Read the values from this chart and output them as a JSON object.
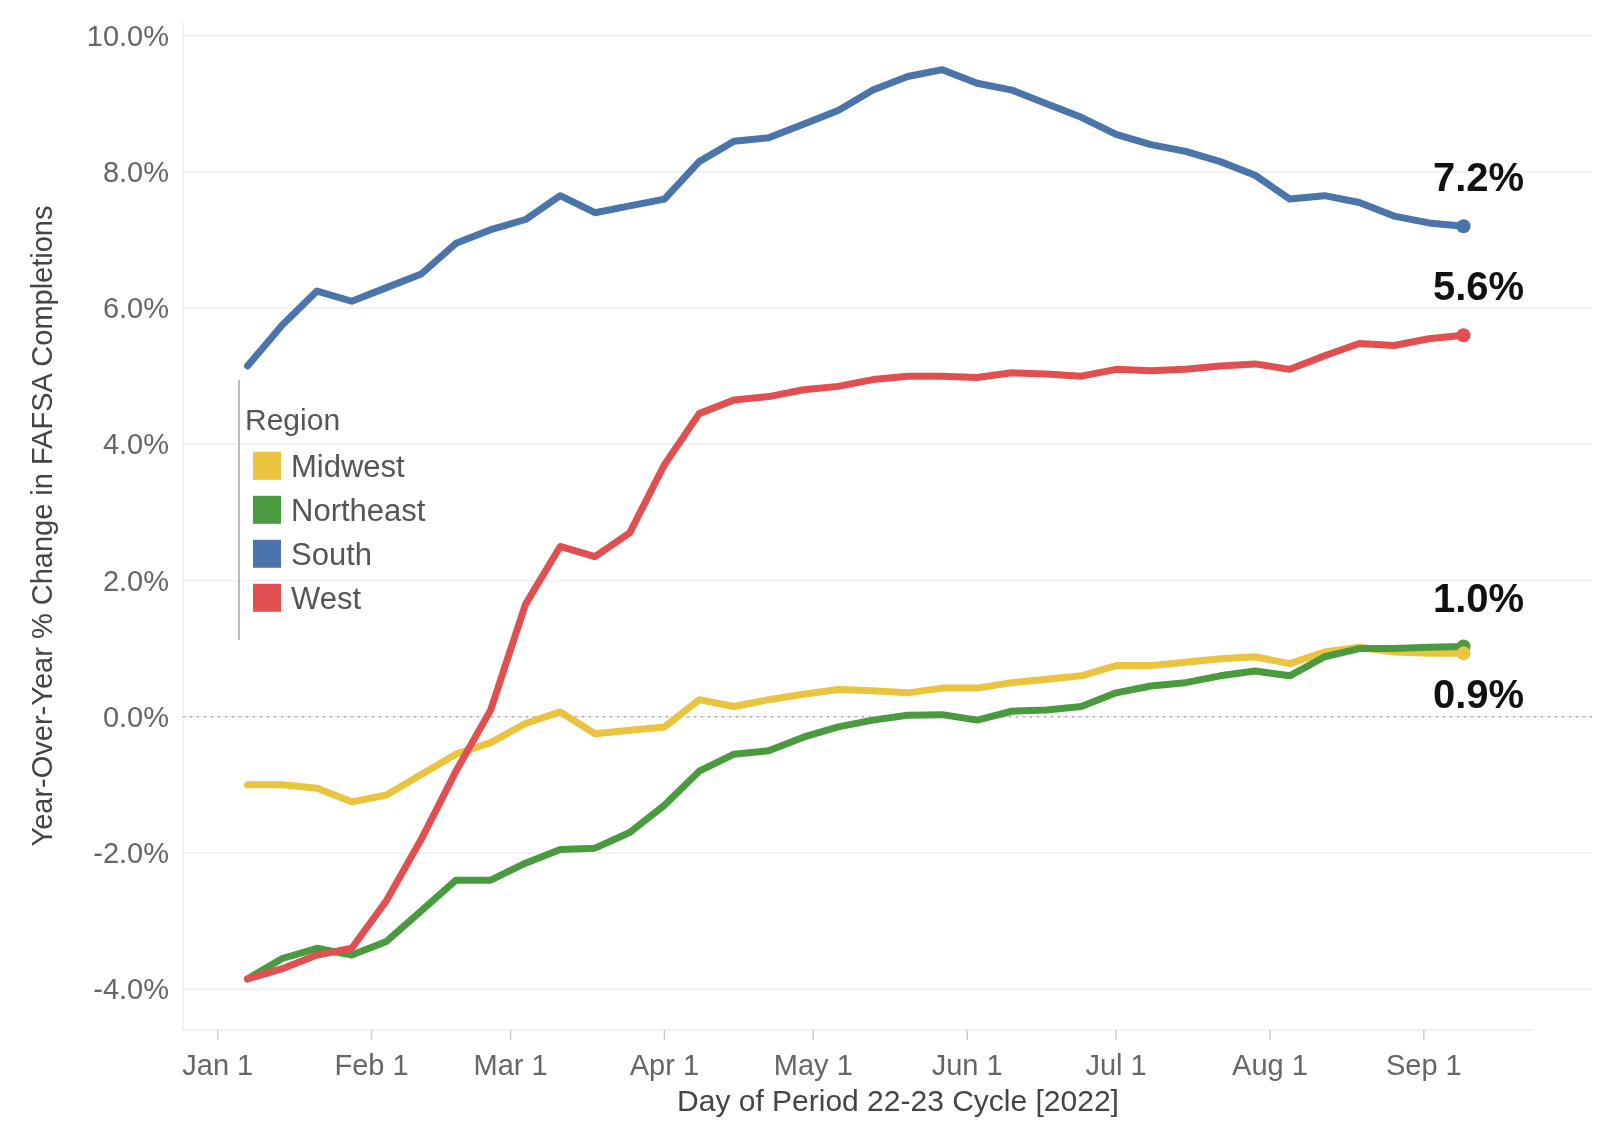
{
  "chart_data": {
    "type": "line",
    "xlabel": "Day of Period 22-23 Cycle [2022]",
    "ylabel": "Year-Over-Year % Change in FAFSA Completions",
    "legend_title": "Region",
    "legend": "left",
    "grid": "y",
    "line_style": "solid",
    "x": [
      "2022-01-07",
      "2022-01-14",
      "2022-01-21",
      "2022-01-28",
      "2022-02-04",
      "2022-02-11",
      "2022-02-18",
      "2022-02-25",
      "2022-03-04",
      "2022-03-11",
      "2022-03-18",
      "2022-03-25",
      "2022-04-01",
      "2022-04-08",
      "2022-04-15",
      "2022-04-22",
      "2022-04-29",
      "2022-05-06",
      "2022-05-13",
      "2022-05-20",
      "2022-05-27",
      "2022-06-03",
      "2022-06-10",
      "2022-06-17",
      "2022-06-24",
      "2022-07-01",
      "2022-07-08",
      "2022-07-15",
      "2022-07-22",
      "2022-07-29",
      "2022-08-05",
      "2022-08-12",
      "2022-08-19",
      "2022-08-26",
      "2022-09-02",
      "2022-09-09"
    ],
    "series": [
      {
        "name": "Midwest",
        "color": "#eac43f",
        "values": [
          -1.0,
          -1.0,
          -1.05,
          -1.25,
          -1.15,
          -0.85,
          -0.55,
          -0.38,
          -0.1,
          0.07,
          -0.25,
          -0.2,
          -0.15,
          0.25,
          0.15,
          0.25,
          0.33,
          0.4,
          0.38,
          0.35,
          0.42,
          0.42,
          0.5,
          0.55,
          0.6,
          0.75,
          0.75,
          0.8,
          0.85,
          0.88,
          0.78,
          0.95,
          1.02,
          0.95,
          0.93,
          0.93
        ]
      },
      {
        "name": "Northeast",
        "color": "#4a9b3f",
        "values": [
          -3.85,
          -3.55,
          -3.4,
          -3.5,
          -3.3,
          -2.85,
          -2.4,
          -2.4,
          -2.15,
          -1.95,
          -1.93,
          -1.7,
          -1.3,
          -0.8,
          -0.55,
          -0.5,
          -0.3,
          -0.15,
          -0.05,
          0.02,
          0.03,
          -0.05,
          0.08,
          0.1,
          0.15,
          0.35,
          0.45,
          0.5,
          0.6,
          0.67,
          0.6,
          0.88,
          1.0,
          1.0,
          1.02,
          1.03
        ]
      },
      {
        "name": "South",
        "color": "#4a74aa",
        "values": [
          5.15,
          5.75,
          6.25,
          6.1,
          6.3,
          6.5,
          6.95,
          7.15,
          7.3,
          7.65,
          7.4,
          7.5,
          7.6,
          8.15,
          8.45,
          8.5,
          8.7,
          8.9,
          9.2,
          9.4,
          9.5,
          9.3,
          9.2,
          9.0,
          8.8,
          8.55,
          8.4,
          8.3,
          8.15,
          7.95,
          7.6,
          7.65,
          7.55,
          7.35,
          7.25,
          7.2
        ]
      },
      {
        "name": "West",
        "color": "#e24f50",
        "values": [
          -3.85,
          -3.7,
          -3.5,
          -3.4,
          -2.7,
          -1.8,
          -0.8,
          0.1,
          1.65,
          2.5,
          2.35,
          2.7,
          3.7,
          4.45,
          4.65,
          4.7,
          4.8,
          4.85,
          4.95,
          5.0,
          5.0,
          4.98,
          5.05,
          5.03,
          5.0,
          5.1,
          5.08,
          5.1,
          5.15,
          5.18,
          5.1,
          5.3,
          5.48,
          5.45,
          5.55,
          5.6
        ]
      }
    ],
    "annotations": [
      {
        "text": "7.2%",
        "x": "2022-09-09",
        "y": 7.2
      },
      {
        "text": "5.6%",
        "x": "2022-09-09",
        "y": 5.6
      },
      {
        "text": "1.0%",
        "x": "2022-09-09",
        "y": 1.03
      },
      {
        "text": "0.9%",
        "x": "2022-09-09",
        "y": 0.93
      }
    ],
    "ref_lines": [
      {
        "axis": "y",
        "value": 0,
        "color": "#aaaaaa",
        "line_style": "dotted"
      }
    ],
    "xlim": [
      "2021-12-25",
      "2022-09-23"
    ],
    "xticks": [
      {
        "value": "2022-01-01",
        "label": "Jan 1"
      },
      {
        "value": "2022-02-01",
        "label": "Feb 1"
      },
      {
        "value": "2022-03-01",
        "label": "Mar 1"
      },
      {
        "value": "2022-04-01",
        "label": "Apr 1"
      },
      {
        "value": "2022-05-01",
        "label": "May 1"
      },
      {
        "value": "2022-06-01",
        "label": "Jun 1"
      },
      {
        "value": "2022-07-01",
        "label": "Jul 1"
      },
      {
        "value": "2022-08-01",
        "label": "Aug 1"
      },
      {
        "value": "2022-09-01",
        "label": "Sep 1"
      }
    ],
    "ylim": [
      -4.6,
      10.2
    ],
    "yticks": [
      {
        "value": -4,
        "label": "-4.0%"
      },
      {
        "value": -2,
        "label": "-2.0%"
      },
      {
        "value": 0,
        "label": "0.0%"
      },
      {
        "value": 2,
        "label": "2.0%"
      },
      {
        "value": 4,
        "label": "4.0%"
      },
      {
        "value": 6,
        "label": "6.0%"
      },
      {
        "value": 8,
        "label": "8.0%"
      },
      {
        "value": 10,
        "label": "10.0%"
      }
    ]
  }
}
